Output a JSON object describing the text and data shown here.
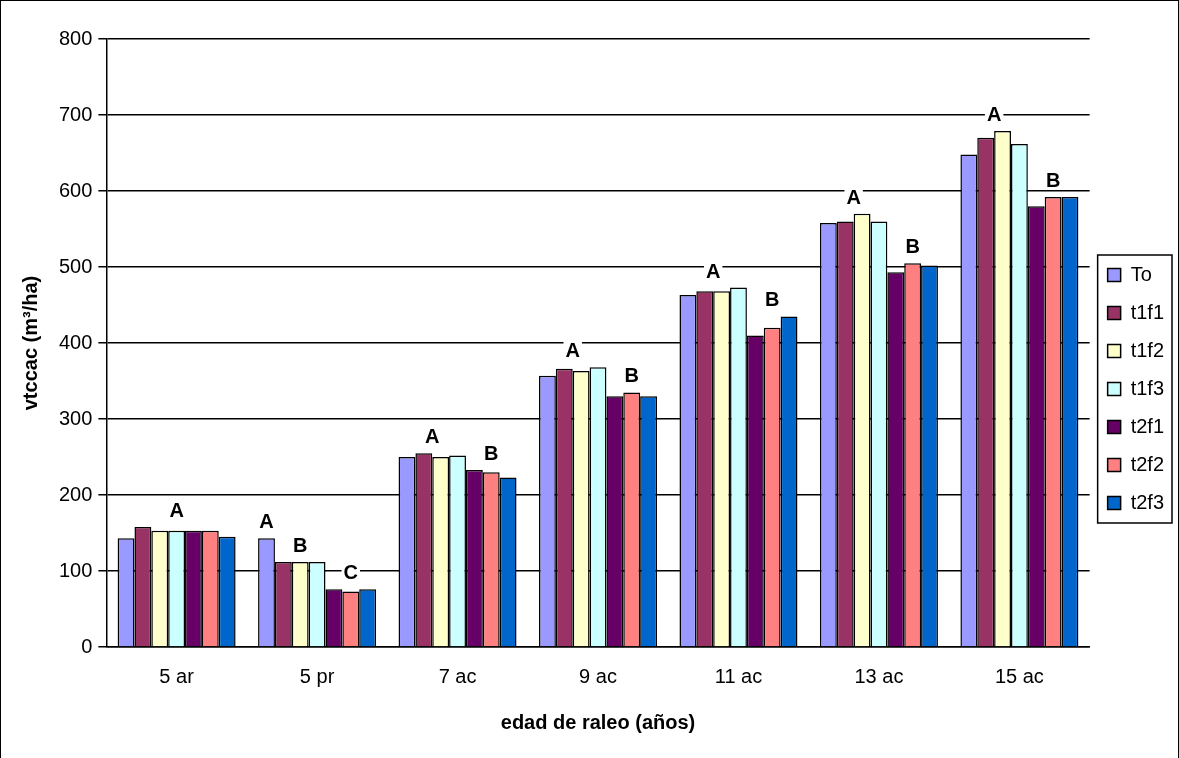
{
  "chart_data": {
    "type": "bar",
    "xlabel": "edad de raleo (años)",
    "ylabel": "vtccac (m³/ha)",
    "categories": [
      "5 ar",
      "5 pr",
      "7 ac",
      "9 ac",
      "11 ac",
      "13 ac",
      "15 ac"
    ],
    "series": [
      {
        "name": "To",
        "color": "#9999ff",
        "values": [
          143,
          143,
          250,
          357,
          463,
          558,
          648
        ]
      },
      {
        "name": "t1f1",
        "color": "#993366",
        "values": [
          158,
          112,
          255,
          366,
          468,
          560,
          670
        ]
      },
      {
        "name": "t1f2",
        "color": "#ffffcc",
        "values": [
          153,
          112,
          250,
          363,
          468,
          570,
          679
        ]
      },
      {
        "name": "t1f3",
        "color": "#ccffff",
        "values": [
          153,
          112,
          252,
          368,
          473,
          560,
          662
        ]
      },
      {
        "name": "t2f1",
        "color": "#660066",
        "values": [
          153,
          76,
          233,
          330,
          410,
          493,
          580
        ]
      },
      {
        "name": "t2f2",
        "color": "#ff8080",
        "values": [
          153,
          73,
          230,
          335,
          420,
          505,
          592
        ]
      },
      {
        "name": "t2f3",
        "color": "#0066cc",
        "values": [
          145,
          76,
          223,
          330,
          435,
          502,
          592
        ]
      }
    ],
    "ylim": [
      0,
      800
    ],
    "yticks": [
      0,
      100,
      200,
      300,
      400,
      500,
      600,
      700,
      800
    ],
    "grid": "y",
    "legend": "right",
    "annotations": [
      "A",
      "A",
      "B",
      "C",
      "A",
      "B",
      "A",
      "B",
      "A",
      "B",
      "A",
      "B",
      "A",
      "B"
    ]
  }
}
